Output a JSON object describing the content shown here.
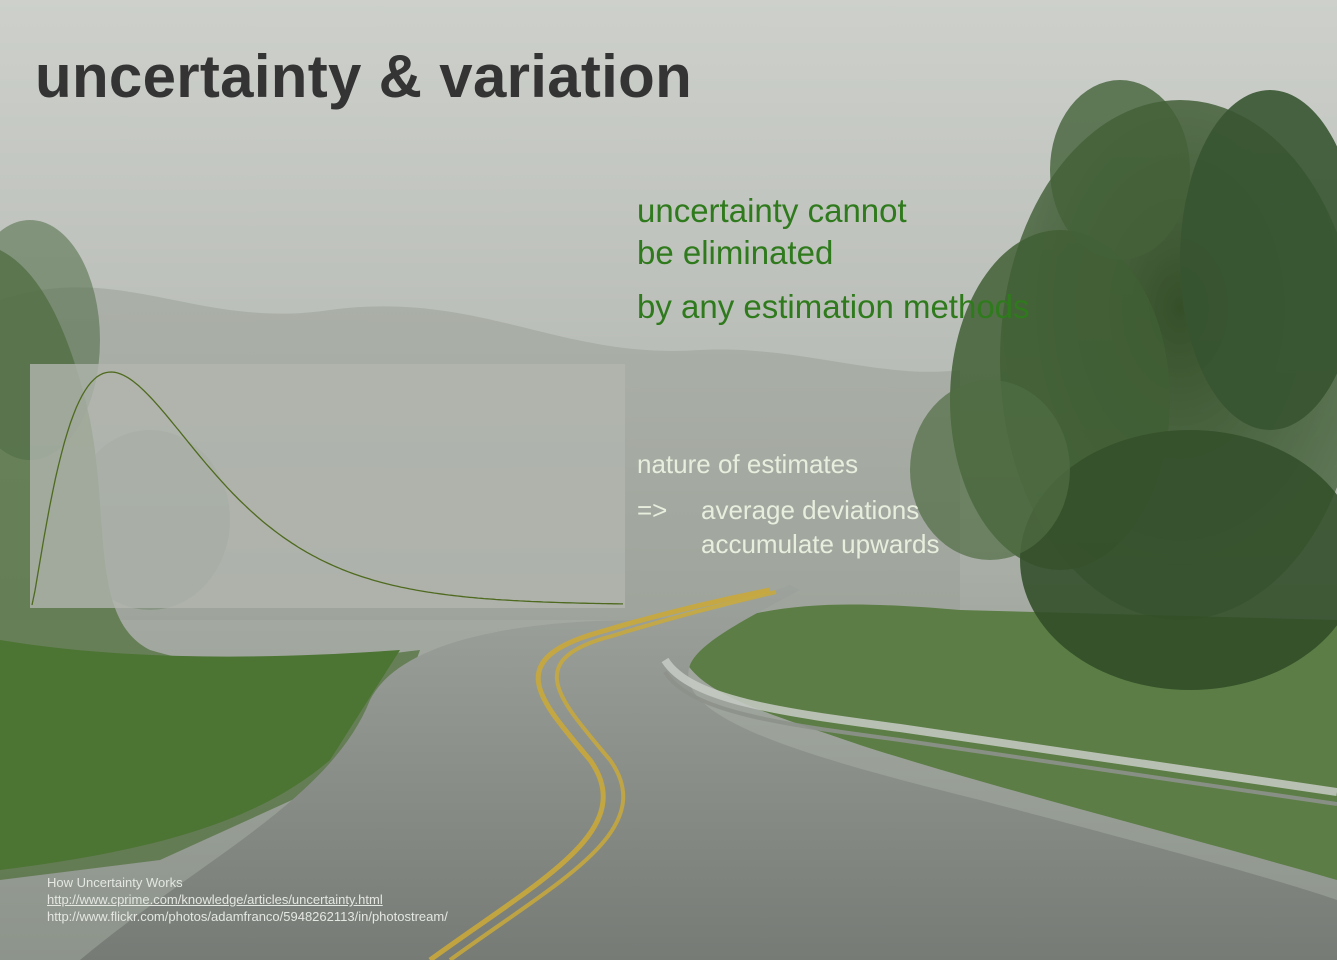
{
  "slide": {
    "title": "uncertainty & variation",
    "statement": {
      "line1": "uncertainty cannot",
      "line2": "be eliminated",
      "line3": "by any estimation methods"
    },
    "nature": {
      "heading": "nature of estimates",
      "arrow": "=>",
      "line1": "average deviations",
      "line2": "accumulate upwards"
    },
    "credits": {
      "source_title": "How Uncertainty Works",
      "source_url": "http://www.cprime.com/knowledge/articles/uncertainty.html",
      "photo_url": "http://www.flickr.com/photos/adamfranco/5948262113/in/photostream/"
    }
  },
  "colors": {
    "title": "#343434",
    "statement": "#2f7a1c",
    "nature": "#e8eedd",
    "curve": "#4f6a1f"
  },
  "icons": {
    "background": "foggy-road-photo",
    "distribution": "skewed-distribution-curve"
  }
}
